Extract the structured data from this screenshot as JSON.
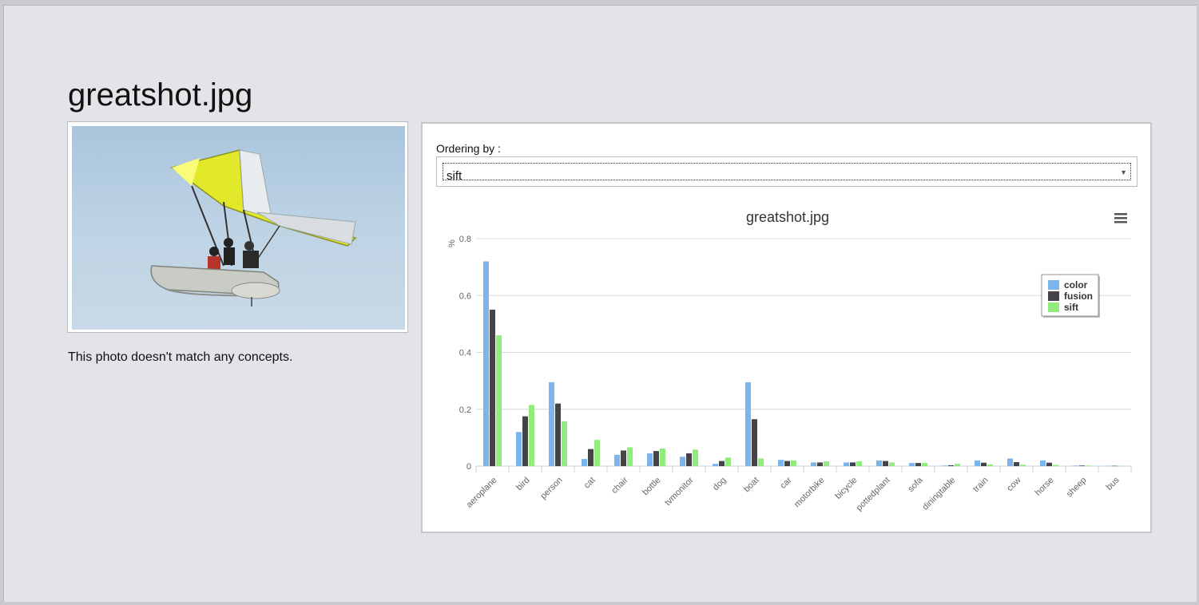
{
  "page": {
    "title": "greatshot.jpg",
    "no_match_text": "This photo doesn't match any concepts."
  },
  "ordering": {
    "label": "Ordering by :",
    "selected": "sift"
  },
  "chart_data": {
    "type": "bar",
    "title": "greatshot.jpg",
    "ylabel": "%",
    "xlabel": "",
    "ylim": [
      0,
      0.8
    ],
    "yticks": [
      0,
      0.2,
      0.4,
      0.6,
      0.8
    ],
    "grid": true,
    "legend": "top-right",
    "categories": [
      "aeroplane",
      "bird",
      "person",
      "cat",
      "chair",
      "bottle",
      "tvmonitor",
      "dog",
      "boat",
      "car",
      "motorbike",
      "bicycle",
      "pottedplant",
      "sofa",
      "diningtable",
      "train",
      "cow",
      "horse",
      "sheep",
      "bus"
    ],
    "series": [
      {
        "name": "color",
        "color": "#7cb5ec",
        "values": [
          0.72,
          0.12,
          0.295,
          0.025,
          0.04,
          0.045,
          0.033,
          0.008,
          0.295,
          0.022,
          0.013,
          0.013,
          0.02,
          0.011,
          0.002,
          0.02,
          0.027,
          0.02,
          0.002,
          0.001
        ]
      },
      {
        "name": "fusion",
        "color": "#434348",
        "values": [
          0.55,
          0.175,
          0.22,
          0.06,
          0.055,
          0.053,
          0.045,
          0.018,
          0.165,
          0.018,
          0.013,
          0.013,
          0.018,
          0.011,
          0.003,
          0.012,
          0.014,
          0.012,
          0.002,
          0.001
        ]
      },
      {
        "name": "sift",
        "color": "#90ed7d",
        "values": [
          0.46,
          0.215,
          0.158,
          0.092,
          0.066,
          0.062,
          0.058,
          0.03,
          0.027,
          0.02,
          0.017,
          0.017,
          0.013,
          0.011,
          0.008,
          0.006,
          0.005,
          0.004,
          0.002,
          0.001
        ]
      }
    ]
  },
  "icons": {
    "chart_menu": "hamburger-menu-icon",
    "select_arrow": "chevron-down-icon"
  }
}
